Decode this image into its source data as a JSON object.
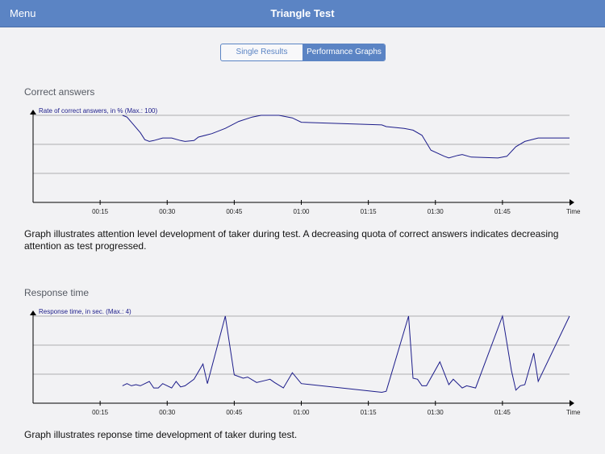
{
  "navbar": {
    "menu_label": "Menu",
    "title": "Triangle Test"
  },
  "segments": {
    "left": "Single Results",
    "right": "Performance Graphs",
    "selected": "right"
  },
  "sections": [
    {
      "title": "Correct answers",
      "description": "Graph illustrates attention level development of taker during test. A decreasing quota of correct answers indicates decreasing attention as test progressed."
    },
    {
      "title": "Response time",
      "description": "Graph illustrates reponse time development of taker during test."
    }
  ],
  "colors": {
    "accent": "#5b84c4",
    "line": "#1c1c8a",
    "grid": "#999999"
  },
  "chart_data": [
    {
      "type": "line",
      "ylabel": "Rate of correct answers, in % (Max.: 100)",
      "xlabel": "Time",
      "xticks": [
        "00:15",
        "00:30",
        "00:45",
        "01:00",
        "01:15",
        "01:30",
        "01:45"
      ],
      "xlim": [
        "00:00",
        "02:00"
      ],
      "ylim": [
        0,
        100
      ],
      "grid": true,
      "series": [
        {
          "values": [
            [
              "00:20",
              100
            ],
            [
              "00:21",
              98
            ],
            [
              "00:22",
              92
            ],
            [
              "00:24",
              80
            ],
            [
              "00:25",
              72
            ],
            [
              "00:26",
              70
            ],
            [
              "00:27",
              71
            ],
            [
              "00:29",
              74
            ],
            [
              "00:31",
              74
            ],
            [
              "00:33",
              71
            ],
            [
              "00:34",
              70
            ],
            [
              "00:36",
              71
            ],
            [
              "00:37",
              75
            ],
            [
              "00:40",
              79
            ],
            [
              "00:43",
              85
            ],
            [
              "00:46",
              93
            ],
            [
              "00:49",
              98
            ],
            [
              "00:51",
              100
            ],
            [
              "00:55",
              100
            ],
            [
              "00:58",
              97
            ],
            [
              "01:00",
              92
            ],
            [
              "01:18",
              89
            ],
            [
              "01:19",
              87
            ],
            [
              "01:23",
              85
            ],
            [
              "01:25",
              83
            ],
            [
              "01:27",
              77
            ],
            [
              "01:29",
              60
            ],
            [
              "01:32",
              53
            ],
            [
              "01:33",
              51
            ],
            [
              "01:35",
              54
            ],
            [
              "01:36",
              55
            ],
            [
              "01:38",
              52
            ],
            [
              "01:44",
              51
            ],
            [
              "01:46",
              53
            ],
            [
              "01:48",
              64
            ],
            [
              "01:50",
              70
            ],
            [
              "01:53",
              74
            ],
            [
              "02:00",
              74
            ]
          ]
        }
      ]
    },
    {
      "type": "line",
      "ylabel": "Response time, in sec. (Max.: 4)",
      "xlabel": "Time",
      "xticks": [
        "00:15",
        "00:30",
        "00:45",
        "01:00",
        "01:15",
        "01:30",
        "01:45"
      ],
      "xlim": [
        "00:00",
        "02:00"
      ],
      "ylim": [
        0,
        4
      ],
      "grid": true,
      "series": [
        {
          "values": [
            [
              "00:20",
              0.8
            ],
            [
              "00:21",
              0.9
            ],
            [
              "00:22",
              0.8
            ],
            [
              "00:23",
              0.85
            ],
            [
              "00:24",
              0.8
            ],
            [
              "00:26",
              1.0
            ],
            [
              "00:27",
              0.7
            ],
            [
              "00:28",
              0.7
            ],
            [
              "00:29",
              0.9
            ],
            [
              "00:31",
              0.7
            ],
            [
              "00:32",
              1.0
            ],
            [
              "00:33",
              0.75
            ],
            [
              "00:34",
              0.8
            ],
            [
              "00:36",
              1.1
            ],
            [
              "00:38",
              1.8
            ],
            [
              "00:39",
              0.9
            ],
            [
              "00:43",
              4.0
            ],
            [
              "00:45",
              1.3
            ],
            [
              "00:47",
              1.15
            ],
            [
              "00:48",
              1.2
            ],
            [
              "00:50",
              0.95
            ],
            [
              "00:52",
              1.05
            ],
            [
              "00:53",
              1.1
            ],
            [
              "00:54",
              0.95
            ],
            [
              "00:56",
              0.7
            ],
            [
              "00:58",
              1.4
            ],
            [
              "01:00",
              0.9
            ],
            [
              "01:18",
              0.5
            ],
            [
              "01:19",
              0.55
            ],
            [
              "01:24",
              4.0
            ],
            [
              "01:25",
              1.15
            ],
            [
              "01:26",
              1.1
            ],
            [
              "01:27",
              0.8
            ],
            [
              "01:28",
              0.8
            ],
            [
              "01:31",
              1.9
            ],
            [
              "01:33",
              0.85
            ],
            [
              "01:34",
              1.1
            ],
            [
              "01:36",
              0.7
            ],
            [
              "01:37",
              0.8
            ],
            [
              "01:39",
              0.7
            ],
            [
              "01:45",
              4.0
            ],
            [
              "01:47",
              1.5
            ],
            [
              "01:48",
              0.6
            ],
            [
              "01:49",
              0.8
            ],
            [
              "01:50",
              0.85
            ],
            [
              "01:52",
              2.3
            ],
            [
              "01:53",
              1.0
            ],
            [
              "02:00",
              4.0
            ]
          ]
        }
      ]
    }
  ]
}
